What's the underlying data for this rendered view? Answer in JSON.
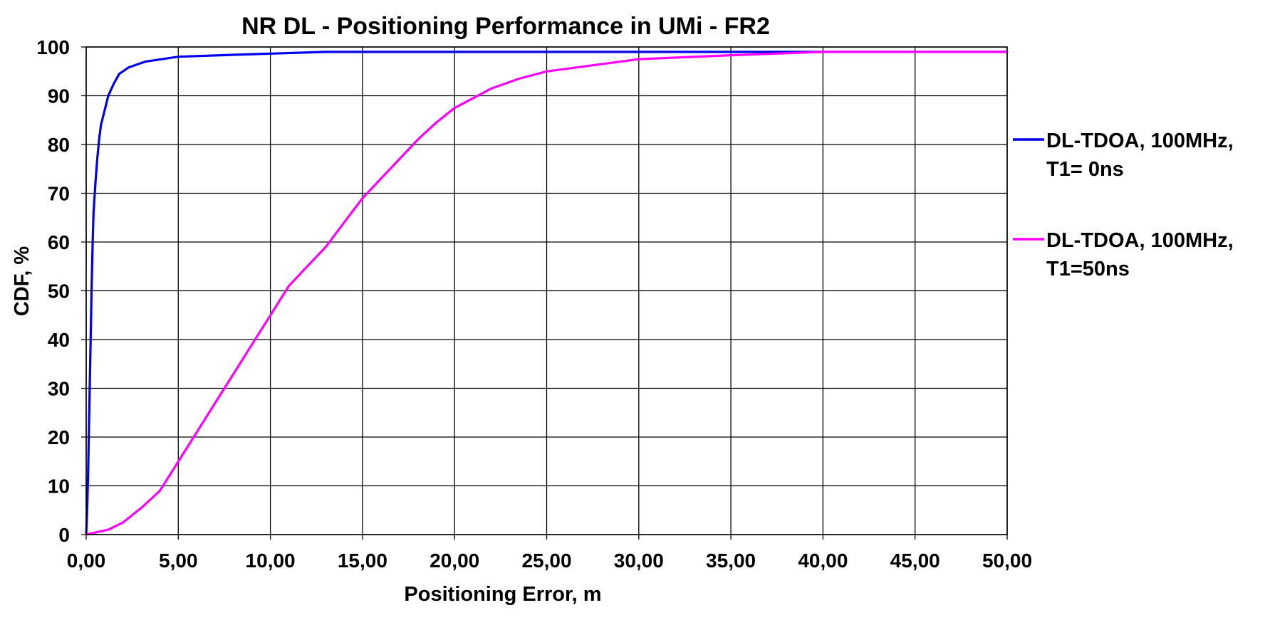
{
  "chart_data": {
    "type": "line",
    "title": "NR  DL - Positioning Performance in UMi - FR2",
    "xlabel": "Positioning  Error, m",
    "ylabel": "CDF, %",
    "xlim": [
      0,
      50
    ],
    "ylim": [
      0,
      100
    ],
    "x_ticks": [
      "0,00",
      "5,00",
      "10,00",
      "15,00",
      "20,00",
      "25,00",
      "30,00",
      "35,00",
      "40,00",
      "45,00",
      "50,00"
    ],
    "y_ticks": [
      "0",
      "10",
      "20",
      "30",
      "40",
      "50",
      "60",
      "70",
      "80",
      "90",
      "100"
    ],
    "grid": true,
    "legend_position": "right",
    "series": [
      {
        "name": "DL-TDOA, 100MHz, T1= 0ns",
        "legend_lines": [
          "DL-TDOA, 100MHz,",
          "T1= 0ns"
        ],
        "color": "#0000ee",
        "points": [
          [
            0,
            0
          ],
          [
            0.05,
            5
          ],
          [
            0.1,
            12
          ],
          [
            0.15,
            22
          ],
          [
            0.2,
            32
          ],
          [
            0.25,
            42
          ],
          [
            0.3,
            52
          ],
          [
            0.35,
            60
          ],
          [
            0.4,
            66
          ],
          [
            0.5,
            72
          ],
          [
            0.6,
            77
          ],
          [
            0.7,
            81
          ],
          [
            0.8,
            84
          ],
          [
            1.0,
            87
          ],
          [
            1.2,
            90
          ],
          [
            1.5,
            92.5
          ],
          [
            1.8,
            94.5
          ],
          [
            2.3,
            95.8
          ],
          [
            3.2,
            97
          ],
          [
            5.0,
            98
          ],
          [
            8.0,
            98.4
          ],
          [
            13.0,
            99
          ],
          [
            30,
            99
          ],
          [
            50,
            99
          ]
        ]
      },
      {
        "name": "DL-TDOA, 100MHz, T1=50ns",
        "legend_lines": [
          "DL-TDOA, 100MHz,",
          "T1=50ns"
        ],
        "color": "#ff00ff",
        "points": [
          [
            0,
            0
          ],
          [
            1.2,
            1
          ],
          [
            2.0,
            2.5
          ],
          [
            3.0,
            5.5
          ],
          [
            4.0,
            9
          ],
          [
            5.0,
            15
          ],
          [
            6.0,
            21
          ],
          [
            7.0,
            27
          ],
          [
            8.0,
            33
          ],
          [
            9.0,
            39
          ],
          [
            10.0,
            45
          ],
          [
            11.0,
            51
          ],
          [
            12.0,
            55
          ],
          [
            13.0,
            59
          ],
          [
            14.0,
            64
          ],
          [
            15.0,
            69
          ],
          [
            16.0,
            73
          ],
          [
            17.0,
            77
          ],
          [
            18.0,
            81
          ],
          [
            19.0,
            84.5
          ],
          [
            20.0,
            87.5
          ],
          [
            21.0,
            89.5
          ],
          [
            22.0,
            91.5
          ],
          [
            23.5,
            93.5
          ],
          [
            25.0,
            95
          ],
          [
            27.0,
            96
          ],
          [
            30.0,
            97.5
          ],
          [
            35.0,
            98.3
          ],
          [
            40.0,
            99
          ],
          [
            50,
            99
          ]
        ]
      }
    ]
  }
}
